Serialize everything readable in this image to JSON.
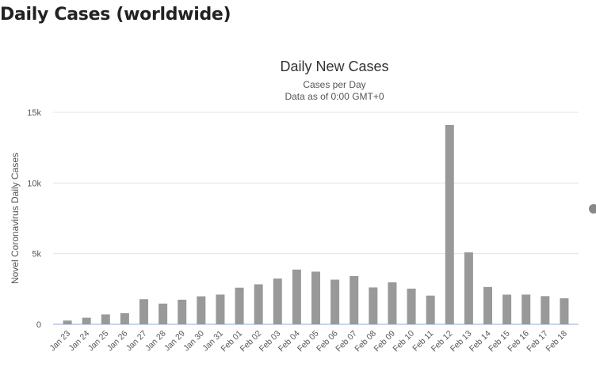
{
  "page": {
    "title": "Daily Cases (worldwide)"
  },
  "chart_data": {
    "type": "bar",
    "title": "Daily New Cases",
    "subtitle": [
      "Cases per Day",
      "Data as of 0:00 GMT+0"
    ],
    "xlabel": "",
    "ylabel": "Novel Coronavirus Daily Cases",
    "ylim": [
      0,
      15000
    ],
    "yticks": [
      {
        "value": 0,
        "label": "0"
      },
      {
        "value": 5000,
        "label": "5k"
      },
      {
        "value": 10000,
        "label": "10k"
      },
      {
        "value": 15000,
        "label": "15k"
      }
    ],
    "grid": true,
    "bar_color": "#999999",
    "categories": [
      "Jan 23",
      "Jan 24",
      "Jan 25",
      "Jan 26",
      "Jan 27",
      "Jan 28",
      "Jan 29",
      "Jan 30",
      "Jan 31",
      "Feb 01",
      "Feb 02",
      "Feb 03",
      "Feb 04",
      "Feb 05",
      "Feb 06",
      "Feb 07",
      "Feb 08",
      "Feb 09",
      "Feb 10",
      "Feb 11",
      "Feb 12",
      "Feb 13",
      "Feb 14",
      "Feb 15",
      "Feb 16",
      "Feb 17",
      "Feb 18"
    ],
    "values": [
      265,
      468,
      701,
      786,
      1778,
      1466,
      1740,
      1980,
      2102,
      2590,
      2829,
      3237,
      3872,
      3727,
      3160,
      3418,
      2607,
      2974,
      2525,
      2032,
      14108,
      5090,
      2641,
      2098,
      2101,
      1995,
      1840
    ]
  }
}
